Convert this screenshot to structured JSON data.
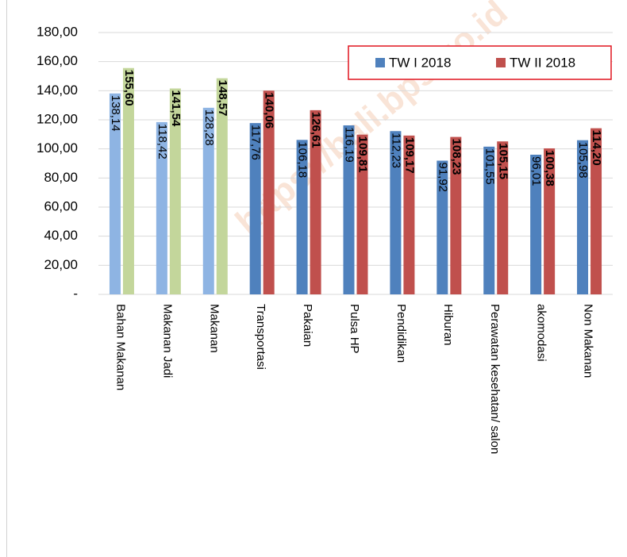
{
  "chart_data": {
    "type": "bar",
    "watermark": "https://bali.bps.go.id",
    "categories": [
      "Bahan Makanan",
      "Makanan Jadi",
      "Makanan",
      "Transportasi",
      "Pakaian",
      "Pulsa HP",
      "Pendidikan",
      "Hiburan",
      "Perawatan kesehatan/ salon",
      "akomodasi",
      "Non Makanan"
    ],
    "series": [
      {
        "name": "TW I 2018",
        "color": "#4f81bd",
        "colors": [
          "#8eb4e3",
          "#8eb4e3",
          "#8eb4e3",
          "#4f81bd",
          "#4f81bd",
          "#4f81bd",
          "#4f81bd",
          "#4f81bd",
          "#4f81bd",
          "#4f81bd",
          "#4f81bd"
        ],
        "values": [
          138.14,
          118.42,
          128.28,
          117.76,
          106.18,
          116.19,
          112.23,
          91.92,
          101.55,
          96.01,
          105.98
        ],
        "value_labels": [
          "138,14",
          "118,42",
          "128,28",
          "117,76",
          "106,18",
          "116,19",
          "112,23",
          "91,92",
          "101,55",
          "96,01",
          "105,98"
        ]
      },
      {
        "name": "TW II 2018",
        "color": "#c0504d",
        "colors": [
          "#c3d69b",
          "#c3d69b",
          "#c3d69b",
          "#c0504d",
          "#c0504d",
          "#c0504d",
          "#c0504d",
          "#c0504d",
          "#c0504d",
          "#c0504d",
          "#c0504d"
        ],
        "values": [
          155.6,
          141.54,
          148.57,
          140.06,
          126.61,
          109.81,
          109.17,
          108.23,
          105.15,
          100.38,
          114.2
        ],
        "value_labels": [
          "155,60",
          "141,54",
          "148,57",
          "140,06",
          "126,61",
          "109,81",
          "109,17",
          "108,23",
          "105,15",
          "100,38",
          "114,20"
        ]
      }
    ],
    "ylim": [
      0,
      180
    ],
    "yticks": [
      {
        "value": 0,
        "label": "-"
      },
      {
        "value": 20,
        "label": "20,00"
      },
      {
        "value": 40,
        "label": "40,00"
      },
      {
        "value": 60,
        "label": "60,00"
      },
      {
        "value": 80,
        "label": "80,00"
      },
      {
        "value": 100,
        "label": "100,00"
      },
      {
        "value": 120,
        "label": "120,00"
      },
      {
        "value": 140,
        "label": "140,00"
      },
      {
        "value": 160,
        "label": "160,00"
      },
      {
        "value": 180,
        "label": "180,00"
      }
    ],
    "grid": true,
    "legend": "top-right"
  }
}
